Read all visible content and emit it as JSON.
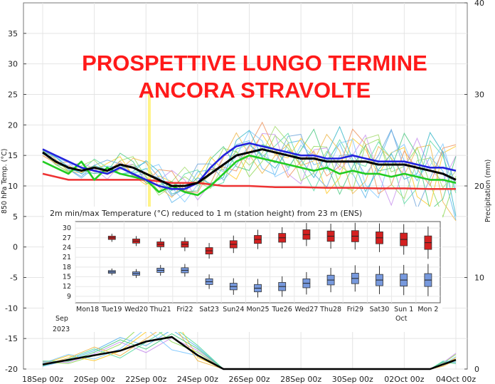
{
  "overlay": {
    "line1": "PROSPETTIVE LUNGO TERMINE",
    "line2": "ANCORA STRAVOLTE"
  },
  "chart_data": [
    {
      "type": "line",
      "title": "",
      "ylabel": "850 hPa Temp. (°C)",
      "y2label": "Precipitation (mm)",
      "ylim": [
        -20,
        40
      ],
      "y2lim": [
        0,
        40
      ],
      "yticks": [
        -20,
        -15,
        -10,
        -5,
        0,
        5,
        10,
        15,
        20,
        25,
        30,
        35
      ],
      "y2ticks": [
        0,
        10,
        20,
        30,
        40
      ],
      "xlabels": [
        "18Sep 00z",
        "20Sep 00z",
        "22Sep 00z",
        "24Sep 00z",
        "26Sep 00z",
        "28Sep 00z",
        "30Sep 00z",
        "02Oct 00z",
        "04Oct 00z"
      ],
      "x_days": [
        0,
        16
      ],
      "grid": true,
      "colors": {
        "mean": "#000000",
        "control": "#2222dd",
        "operational": "#22cc22",
        "climate": "#ee3333",
        "highlight": "#ffee55"
      },
      "series": [
        {
          "role": "mean",
          "x": [
            0,
            0.5,
            1,
            1.5,
            2,
            2.5,
            3,
            3.5,
            4,
            4.5,
            5,
            5.5,
            6,
            6.5,
            7,
            7.5,
            8,
            8.5,
            9,
            9.5,
            10,
            10.5,
            11,
            11.5,
            12,
            12.5,
            13,
            13.5,
            14,
            14.5,
            15,
            15.5,
            16
          ],
          "values": [
            15.5,
            14,
            13,
            12.5,
            13,
            12.5,
            13.5,
            13,
            12,
            11,
            10,
            10,
            10.5,
            12,
            13.5,
            15,
            15.5,
            16,
            15.5,
            15,
            14.5,
            14.5,
            14,
            14,
            14,
            14,
            13.5,
            13.5,
            13.5,
            13,
            12.5,
            12,
            11
          ]
        },
        {
          "role": "control",
          "x": [
            0,
            0.5,
            1,
            1.5,
            2,
            2.5,
            3,
            3.5,
            4,
            4.5,
            5,
            5.5,
            6,
            6.5,
            7,
            7.5,
            8,
            8.5,
            9,
            9.5,
            10,
            10.5,
            11,
            11.5,
            12,
            12.5,
            13,
            13.5,
            14,
            14.5,
            15,
            15.5,
            16
          ],
          "values": [
            16,
            15,
            14,
            13,
            12.5,
            12,
            13,
            12,
            11,
            10,
            9.5,
            9.5,
            10.5,
            13,
            15,
            16.5,
            17,
            16.5,
            16,
            15.5,
            15,
            15,
            14.5,
            14.5,
            15,
            14.5,
            14,
            14,
            14,
            13.5,
            13,
            13,
            12.5
          ]
        },
        {
          "role": "operational",
          "x": [
            0,
            0.5,
            1,
            1.5,
            2,
            2.5,
            3,
            3.5,
            4,
            4.5,
            5,
            5.5,
            6,
            6.5,
            7,
            7.5,
            8,
            8.5,
            9,
            9.5,
            10,
            10.5,
            11,
            11.5,
            12,
            12.5,
            13,
            13.5,
            14,
            14.5,
            15,
            15.5,
            16
          ],
          "values": [
            14,
            13,
            12,
            14,
            11,
            13,
            12,
            11.5,
            11,
            9,
            10,
            9,
            8.5,
            10,
            12,
            14,
            15,
            14.5,
            14,
            13.5,
            13,
            12.5,
            13,
            12,
            12.5,
            12,
            12,
            11.5,
            12,
            11.5,
            11,
            11,
            10.5
          ]
        },
        {
          "role": "climate",
          "x": [
            0,
            1,
            2,
            3,
            4,
            5,
            6,
            7,
            8,
            9,
            10,
            11,
            12,
            13,
            14,
            15,
            16
          ],
          "values": [
            12,
            11,
            11,
            11,
            11,
            10.5,
            10.5,
            10,
            10,
            9.8,
            9.8,
            9.7,
            9.7,
            9.6,
            9.6,
            9.5,
            9.5
          ]
        }
      ],
      "precipitation_mean_mm": {
        "x": [
          0,
          1,
          2,
          3,
          4,
          5,
          6,
          7,
          8,
          9,
          10,
          11,
          12,
          13,
          14,
          15,
          15.5,
          16
        ],
        "values": [
          0.5,
          1,
          1.5,
          2,
          3,
          3.5,
          1.5,
          0,
          0,
          0,
          0,
          0,
          0,
          0,
          0,
          0,
          0.5,
          1
        ]
      }
    },
    {
      "type": "boxplot",
      "title": "2m min/max Temperature (°C) reduced to 1 m (station height) from 23 m (ENS)",
      "yticks": [
        9,
        12,
        15,
        18,
        21,
        24,
        27,
        30
      ],
      "ylim": [
        7,
        32
      ],
      "categories": [
        "Mon18",
        "Tue19",
        "Wed20",
        "Thu21",
        "Fri22",
        "Sat23",
        "Sun24",
        "Mon25",
        "Tue26",
        "Wed27",
        "Thu28",
        "Fri29",
        "Sat30",
        "Sun 1",
        "Mon 2"
      ],
      "weekend_categories": [
        "Sun24",
        "Sun 1"
      ],
      "month_labels": {
        "Sep": "Sep",
        "Oct": "Oct",
        "year": "2023"
      },
      "max_median": [
        null,
        27,
        26,
        25,
        25,
        23,
        25,
        26.5,
        27,
        28,
        27.5,
        27.5,
        27,
        26.5,
        25.5
      ],
      "min_median": [
        null,
        16.5,
        16,
        17,
        17,
        13.5,
        12,
        11.5,
        12,
        13,
        14,
        14.5,
        14,
        14,
        14
      ],
      "colors": {
        "max_box": "#d42020",
        "min_box": "#7799dd"
      }
    }
  ]
}
